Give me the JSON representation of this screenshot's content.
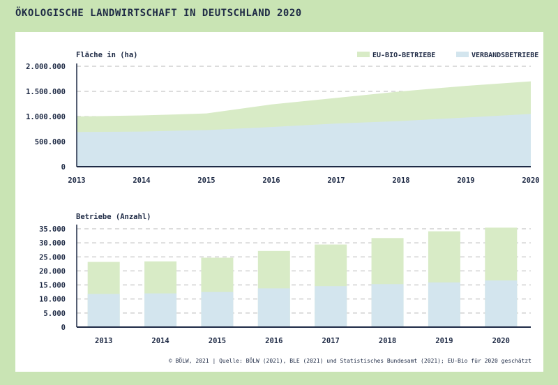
{
  "title": "ÖKOLOGISCHE LANDWIRTSCHAFT IN DEUTSCHLAND 2020",
  "footer": "© BÖLW, 2021 | Quelle: BÖLW (2021), BLE (2021) und Statistisches Bundesamt (2021); EU-Bio für 2020 geschätzt",
  "colors": {
    "background": "#c9e4b4",
    "eu_bio": "#d8ebc6",
    "verband": "#d3e5ee",
    "axis": "#1e2a45",
    "grid": "#b8b8b8"
  },
  "legend": {
    "eu_bio": "EU-BIO-BETRIEBE",
    "verband": "VERBANDSBETRIEBE"
  },
  "chart_data": [
    {
      "type": "area",
      "ylabel": "Fläche in (ha)",
      "x": [
        "2013",
        "2014",
        "2015",
        "2016",
        "2017",
        "2018",
        "2019",
        "2020"
      ],
      "y_ticks": [
        "0",
        "500.000",
        "1.000.000",
        "1.500.000",
        "2.000.000"
      ],
      "ylim": [
        0,
        2000000
      ],
      "grid": true,
      "legend_position": "top-right",
      "series": [
        {
          "name": "VERBANDSBETRIEBE",
          "values": [
            690000,
            700000,
            730000,
            790000,
            860000,
            910000,
            980000,
            1050000
          ]
        },
        {
          "name": "EU-BIO-BETRIEBE",
          "values": [
            1000000,
            1020000,
            1060000,
            1240000,
            1370000,
            1500000,
            1610000,
            1700000
          ]
        }
      ]
    },
    {
      "type": "bar",
      "ylabel": "Betriebe (Anzahl)",
      "categories": [
        "2013",
        "2014",
        "2015",
        "2016",
        "2017",
        "2018",
        "2019",
        "2020"
      ],
      "y_ticks": [
        "0",
        "5.000",
        "10.000",
        "15.000",
        "20.000",
        "25.000",
        "30.000",
        "35.000"
      ],
      "ylim": [
        0,
        35000
      ],
      "grid": true,
      "stacked": false,
      "series": [
        {
          "name": "VERBANDSBETRIEBE",
          "values": [
            11800,
            12000,
            12500,
            13800,
            14600,
            15300,
            15900,
            16600
          ]
        },
        {
          "name": "EU-BIO-BETRIEBE",
          "values": [
            23200,
            23400,
            24700,
            27100,
            29400,
            31700,
            34100,
            35400
          ]
        }
      ]
    }
  ]
}
